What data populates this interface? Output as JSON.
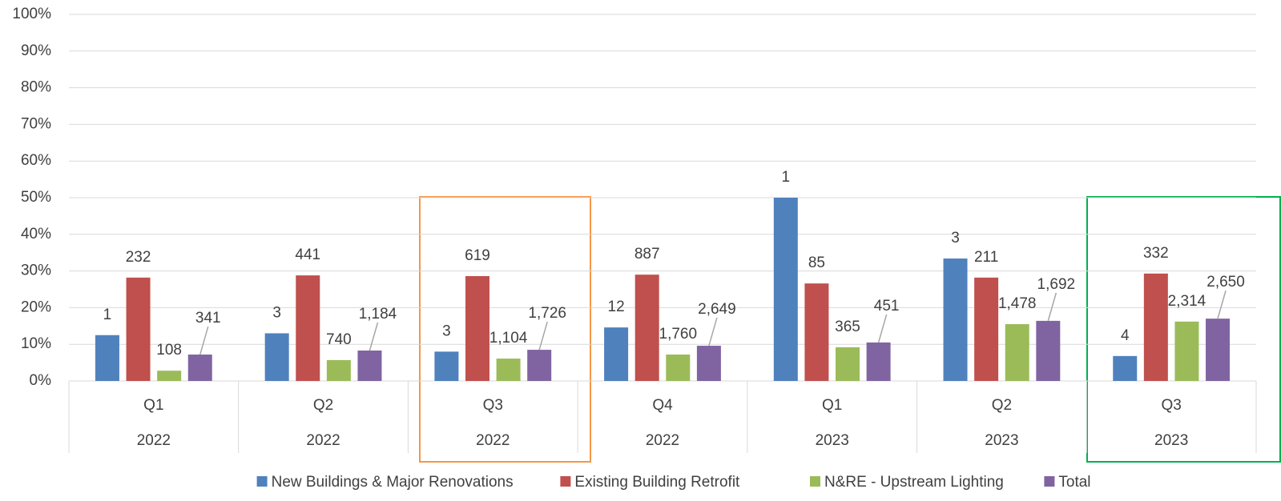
{
  "chart_data": {
    "type": "bar",
    "categories": [
      "Q1",
      "Q2",
      "Q3",
      "Q4",
      "Q1",
      "Q2",
      "Q3"
    ],
    "years": [
      "2022",
      "2022",
      "2022",
      "2022",
      "2023",
      "2023",
      "2023"
    ],
    "ylim": [
      0,
      100
    ],
    "yticks": [
      {
        "value": 0,
        "label": "0%"
      },
      {
        "value": 10,
        "label": "10%"
      },
      {
        "value": 20,
        "label": "20%"
      },
      {
        "value": 30,
        "label": "30%"
      },
      {
        "value": 40,
        "label": "40%"
      },
      {
        "value": 50,
        "label": "50%"
      },
      {
        "value": 60,
        "label": "60%"
      },
      {
        "value": 70,
        "label": "70%"
      },
      {
        "value": 80,
        "label": "80%"
      },
      {
        "value": 90,
        "label": "90%"
      },
      {
        "value": 100,
        "label": "100%"
      }
    ],
    "grid": true,
    "legend": "bottom",
    "series": [
      {
        "name": "New Buildings & Major Renovations",
        "color": "#4f81bd",
        "values": [
          12.5,
          13,
          8,
          14.6,
          50,
          33.4,
          6.8
        ],
        "count_labels": [
          "1",
          "3",
          "3",
          "12",
          "1",
          "3",
          "4"
        ]
      },
      {
        "name": "Existing Building Retrofit",
        "color": "#c0504d",
        "values": [
          28.2,
          28.8,
          28.6,
          29,
          26.6,
          28.2,
          29.3
        ],
        "count_labels": [
          "232",
          "441",
          "619",
          "887",
          "85",
          "211",
          "332"
        ]
      },
      {
        "name": "N&RE - Upstream Lighting",
        "color": "#9bbb59",
        "values": [
          2.8,
          5.7,
          6.1,
          7.2,
          9.2,
          15.5,
          16.2
        ],
        "count_labels": [
          "108",
          "740",
          "1,104",
          "1,760",
          "365",
          "1,478",
          "2,314"
        ]
      },
      {
        "name": "Total",
        "color": "#8064a2",
        "values": [
          7.2,
          8.3,
          8.5,
          9.6,
          10.5,
          16.4,
          17
        ],
        "count_labels": [
          "341",
          "1,184",
          "1,726",
          "2,649",
          "451",
          "1,692",
          "2,650"
        ]
      }
    ]
  }
}
